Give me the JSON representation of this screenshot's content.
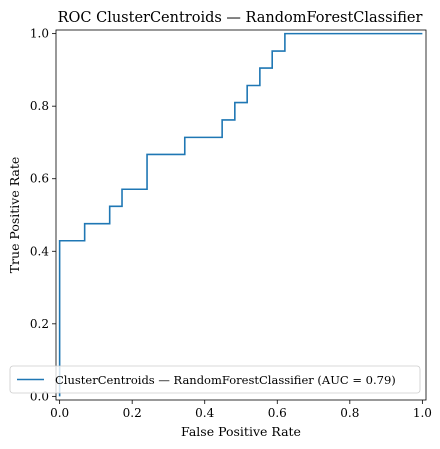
{
  "chart_data": {
    "type": "line",
    "title": "ROC ClusterCentroids — RandomForestClassifier",
    "xlabel": "False Positive Rate",
    "ylabel": "True Positive Rate",
    "xlim": [
      -0.01,
      1.01
    ],
    "ylim": [
      -0.01,
      1.01
    ],
    "xticks": [
      0.0,
      0.2,
      0.4,
      0.6,
      0.8,
      1.0
    ],
    "xtick_labels": [
      "0.0",
      "0.2",
      "0.4",
      "0.6",
      "0.8",
      "1.0"
    ],
    "yticks": [
      0.0,
      0.2,
      0.4,
      0.6,
      0.8,
      1.0
    ],
    "ytick_labels": [
      "0.0",
      "0.2",
      "0.4",
      "0.6",
      "0.8",
      "1.0"
    ],
    "grid": false,
    "legend_position": "lower-right",
    "series": [
      {
        "name": "ClusterCentroids — RandomForestClassifier (AUC = 0.79)",
        "color": "#1f77b4",
        "x": [
          0.0,
          0.0,
          0.0,
          0.0,
          0.0,
          0.0,
          0.0,
          0.069,
          0.069,
          0.138,
          0.138,
          0.172,
          0.172,
          0.241,
          0.241,
          0.241,
          0.345,
          0.345,
          0.448,
          0.448,
          0.448,
          0.483,
          0.483,
          0.517,
          0.517,
          0.552,
          0.552,
          0.586,
          0.586,
          0.621,
          0.621,
          0.655,
          1.0
        ],
        "y": [
          0.0,
          0.048,
          0.095,
          0.143,
          0.238,
          0.333,
          0.429,
          0.429,
          0.476,
          0.476,
          0.524,
          0.524,
          0.571,
          0.571,
          0.619,
          0.667,
          0.667,
          0.714,
          0.714,
          0.762,
          0.762,
          0.762,
          0.81,
          0.81,
          0.857,
          0.857,
          0.905,
          0.905,
          0.952,
          0.952,
          1.0,
          1.0,
          1.0
        ]
      }
    ]
  }
}
